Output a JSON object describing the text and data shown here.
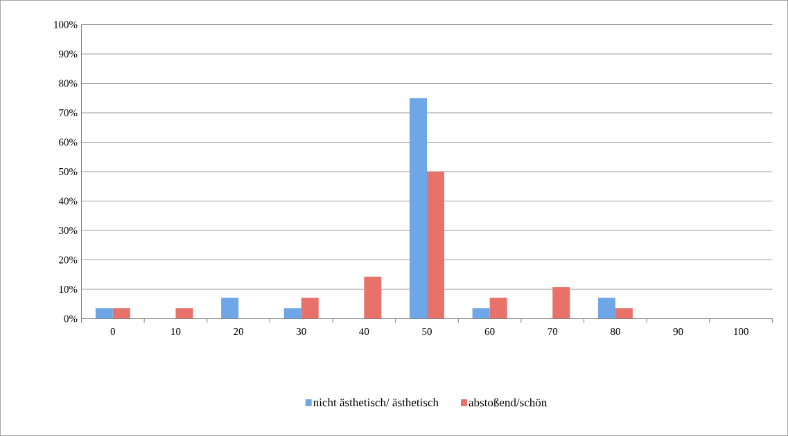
{
  "chart_data": {
    "type": "bar",
    "categories": [
      "0",
      "10",
      "20",
      "30",
      "40",
      "50",
      "60",
      "70",
      "80",
      "90",
      "100"
    ],
    "series": [
      {
        "name": "nicht ästhetisch/ ästhetisch",
        "color": "#6fa6e8",
        "values": [
          3.6,
          0,
          7.1,
          3.6,
          0,
          75,
          3.6,
          0,
          7.1,
          0,
          0
        ]
      },
      {
        "name": "abstoßend/schön",
        "color": "#e8716a",
        "values": [
          3.6,
          3.6,
          0,
          7.1,
          14.3,
          50,
          7.1,
          10.7,
          3.6,
          0,
          0
        ]
      }
    ],
    "ylim": [
      0,
      100
    ],
    "yticks": [
      {
        "value": 0,
        "label": "0%"
      },
      {
        "value": 10,
        "label": "10%"
      },
      {
        "value": 20,
        "label": "20%"
      },
      {
        "value": 30,
        "label": "30%"
      },
      {
        "value": 40,
        "label": "40%"
      },
      {
        "value": 50,
        "label": "50%"
      },
      {
        "value": 60,
        "label": "60%"
      },
      {
        "value": 70,
        "label": "70%"
      },
      {
        "value": 80,
        "label": "80%"
      },
      {
        "value": 90,
        "label": "90%"
      },
      {
        "value": 100,
        "label": "100%"
      }
    ],
    "grid": "y",
    "legend": "bottom"
  }
}
